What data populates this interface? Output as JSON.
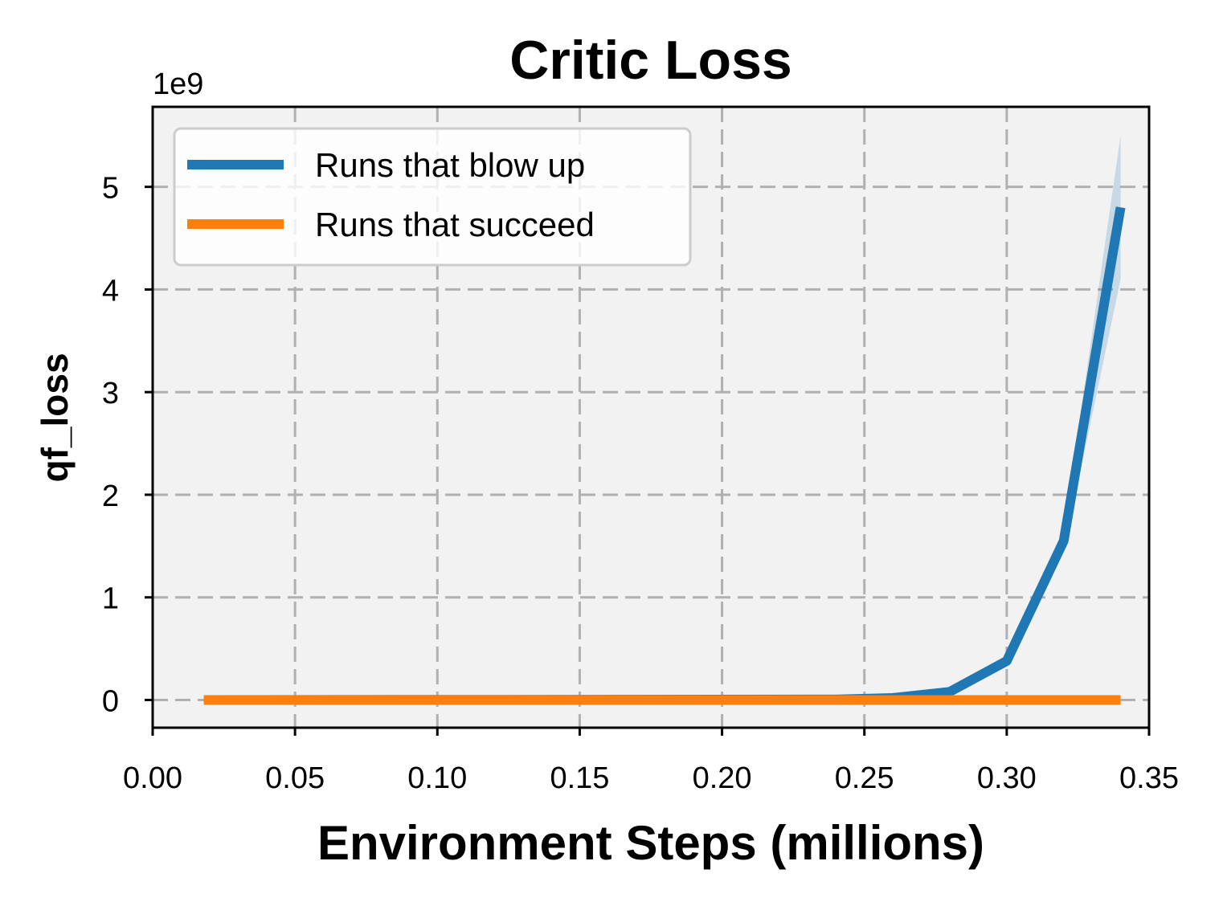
{
  "chart_data": {
    "type": "line",
    "title": "Critic Loss",
    "xlabel": "Environment Steps (millions)",
    "ylabel": "qf_loss",
    "y_offset_label": "1e9",
    "xlim": [
      0.0,
      0.35
    ],
    "ylim": [
      -0.27,
      5.78
    ],
    "x_ticks": [
      0.0,
      0.05,
      0.1,
      0.15,
      0.2,
      0.25,
      0.3,
      0.35
    ],
    "x_tick_labels": [
      "0.00",
      "0.05",
      "0.10",
      "0.15",
      "0.20",
      "0.25",
      "0.30",
      "0.35"
    ],
    "y_ticks": [
      0,
      1,
      2,
      3,
      4,
      5
    ],
    "y_tick_labels": [
      "0",
      "1",
      "2",
      "3",
      "4",
      "5"
    ],
    "grid": true,
    "legend_position": "top-left",
    "background_color": "#f2f2f2",
    "series": [
      {
        "name": "Runs that blow up",
        "color": "#1f77b4",
        "x": [
          0.018,
          0.24,
          0.26,
          0.28,
          0.3,
          0.32,
          0.34
        ],
        "values": [
          0.0,
          0.005,
          0.02,
          0.08,
          0.38,
          1.55,
          4.8
        ],
        "band_lower": [
          0.0,
          0.005,
          0.02,
          0.07,
          0.34,
          1.45,
          4.1
        ],
        "band_upper": [
          0.0,
          0.005,
          0.02,
          0.09,
          0.42,
          1.65,
          5.5
        ]
      },
      {
        "name": "Runs that succeed",
        "color": "#ff7f0e",
        "x": [
          0.018,
          0.34
        ],
        "values": [
          0.0,
          0.0
        ]
      }
    ]
  }
}
